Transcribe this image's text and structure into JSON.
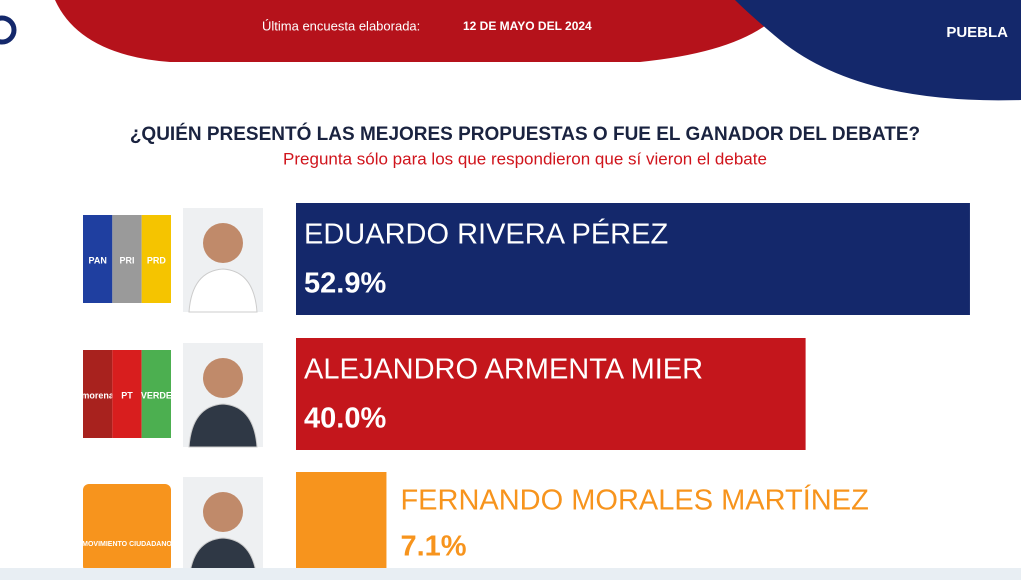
{
  "chart_data": {
    "type": "bar",
    "header_label": "Última encuesta elaborada:",
    "header_date": "12 DE MAYO DEL 2024",
    "region": "PUEBLA",
    "title": "¿QUIÉN PRESENTÓ LAS MEJORES PROPUESTAS O FUE EL GANADOR DEL DEBATE?",
    "subtitle": "Pregunta sólo para los que respondieron que sí vieron el debate",
    "categories": [
      "EDUARDO RIVERA PÉREZ",
      "ALEJANDRO ARMENTA MIER",
      "FERNANDO MORALES MARTÍNEZ"
    ],
    "values": [
      52.9,
      40.0,
      7.1
    ],
    "value_labels": [
      "52.9%",
      "40.0%",
      "7.1%"
    ],
    "colors": [
      "#14286b",
      "#c4161c",
      "#f7941d"
    ],
    "parties": [
      [
        "PAN",
        "PRI",
        "PRD"
      ],
      [
        "morena",
        "PT",
        "VERDE"
      ],
      [
        "MOVIMIENTO CIUDADANO"
      ]
    ]
  }
}
